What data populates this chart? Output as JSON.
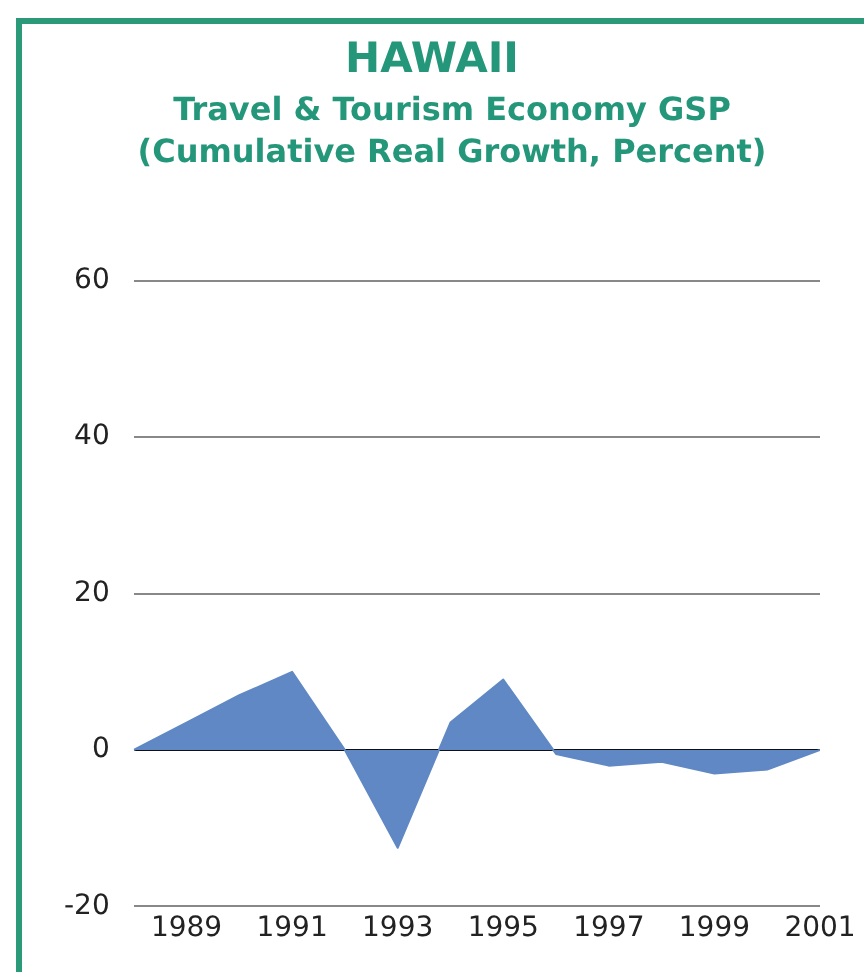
{
  "chart_data": {
    "type": "area",
    "title": "HAWAII",
    "subtitle": "Travel & Tourism Economy GSP (Cumulative Real Growth, Percent)",
    "x": [
      1988,
      1989,
      1990,
      1991,
      1992,
      1993,
      1994,
      1995,
      1996,
      1997,
      1998,
      1999,
      2000,
      2001
    ],
    "series": [
      {
        "color": "#5f88c4",
        "values": [
          0,
          3.5,
          7,
          10,
          0,
          -12.5,
          3.5,
          9,
          -0.5,
          -2,
          -1.5,
          -3,
          -2.5,
          0
        ]
      }
    ],
    "xlim": [
      1988,
      2001
    ],
    "xticks": [
      1989,
      1991,
      1993,
      1995,
      1997,
      1999,
      2001
    ],
    "ylim": [
      -20,
      60
    ],
    "yticks": [
      -20,
      0,
      20,
      40,
      60
    ],
    "grid": "y",
    "legend": false
  }
}
